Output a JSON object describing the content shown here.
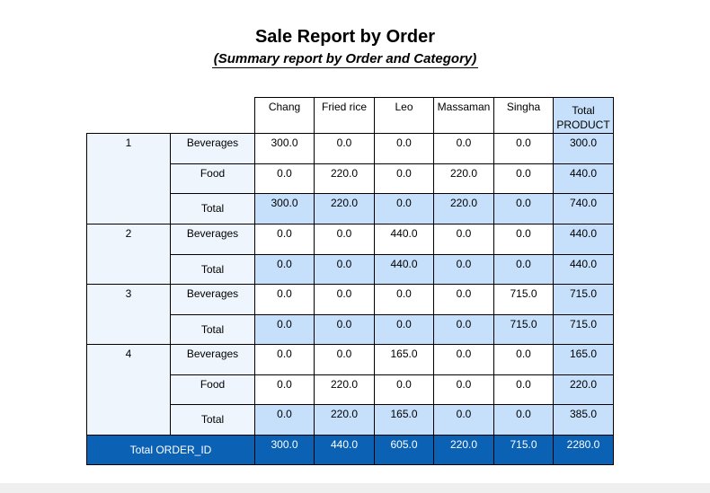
{
  "report": {
    "title": "Sale Report by Order",
    "subtitle": "(Summary report by Order and Category)"
  },
  "columns": [
    "Chang",
    "Fried rice",
    "Leo",
    "Massaman",
    "Singha",
    "Total PRODUCT"
  ],
  "groups": [
    {
      "order_id": "1",
      "rows": [
        {
          "category": "Beverages",
          "values": [
            "300.0",
            "0.0",
            "0.0",
            "0.0",
            "0.0",
            "300.0"
          ]
        },
        {
          "category": "Food",
          "values": [
            "0.0",
            "220.0",
            "0.0",
            "220.0",
            "0.0",
            "440.0"
          ]
        },
        {
          "category": "Total",
          "values": [
            "300.0",
            "220.0",
            "0.0",
            "220.0",
            "0.0",
            "740.0"
          ]
        }
      ]
    },
    {
      "order_id": "2",
      "rows": [
        {
          "category": "Beverages",
          "values": [
            "0.0",
            "0.0",
            "440.0",
            "0.0",
            "0.0",
            "440.0"
          ]
        },
        {
          "category": "Total",
          "values": [
            "0.0",
            "0.0",
            "440.0",
            "0.0",
            "0.0",
            "440.0"
          ]
        }
      ]
    },
    {
      "order_id": "3",
      "rows": [
        {
          "category": "Beverages",
          "values": [
            "0.0",
            "0.0",
            "0.0",
            "0.0",
            "715.0",
            "715.0"
          ]
        },
        {
          "category": "Total",
          "values": [
            "0.0",
            "0.0",
            "0.0",
            "0.0",
            "715.0",
            "715.0"
          ]
        }
      ]
    },
    {
      "order_id": "4",
      "rows": [
        {
          "category": "Beverages",
          "values": [
            "0.0",
            "0.0",
            "165.0",
            "0.0",
            "0.0",
            "165.0"
          ]
        },
        {
          "category": "Food",
          "values": [
            "0.0",
            "220.0",
            "0.0",
            "0.0",
            "0.0",
            "220.0"
          ]
        },
        {
          "category": "Total",
          "values": [
            "0.0",
            "220.0",
            "165.0",
            "0.0",
            "0.0",
            "385.0"
          ]
        }
      ]
    }
  ],
  "grand_total": {
    "label": "Total ORDER_ID",
    "values": [
      "300.0",
      "440.0",
      "605.0",
      "220.0",
      "715.0",
      "2280.0"
    ]
  }
}
